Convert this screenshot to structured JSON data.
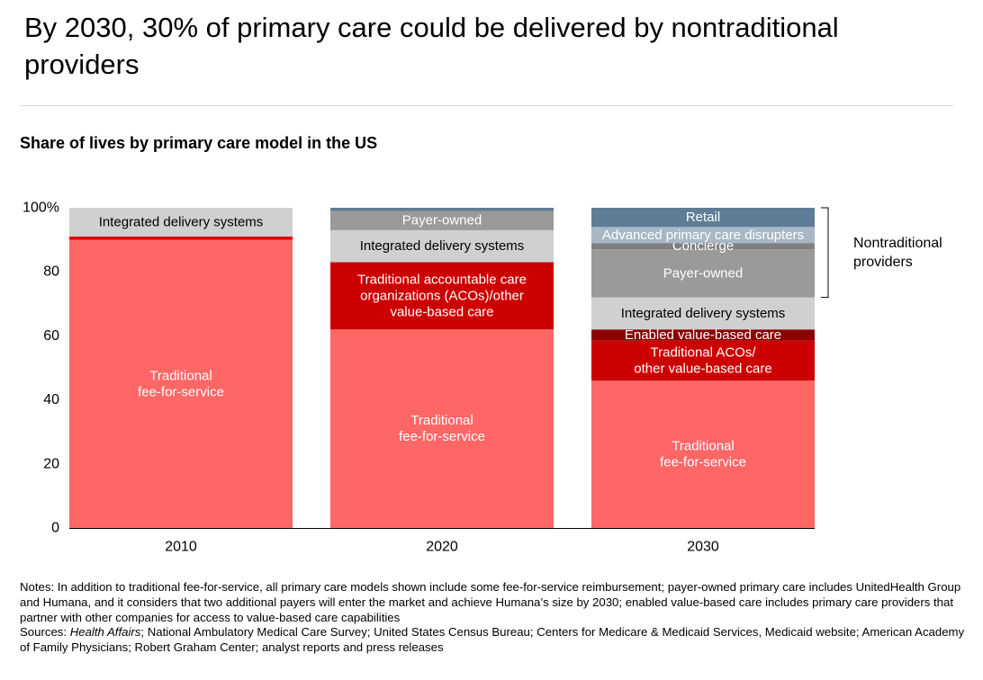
{
  "header": {
    "title": "By 2030, 30% of primary care could be delivered by nontraditional providers"
  },
  "chart_data": {
    "type": "bar",
    "stacked": true,
    "title": "Share of lives by primary care model in the US",
    "categories": [
      "2010",
      "2020",
      "2030"
    ],
    "ylim": [
      0,
      100
    ],
    "y_ticks": [
      "0",
      "20",
      "40",
      "60",
      "80",
      "100%"
    ],
    "grid": false,
    "bars": [
      {
        "category": "2010",
        "segments": [
          {
            "label": "Traditional\nfee-for-service",
            "value": 90,
            "color": "#ff6666"
          },
          {
            "label": "",
            "value": 1,
            "color": "#dd0000"
          },
          {
            "label": "Integrated delivery systems",
            "value": 9,
            "color": "#d0d0d0"
          }
        ]
      },
      {
        "category": "2020",
        "segments": [
          {
            "label": "Traditional\nfee-for-service",
            "value": 62,
            "color": "#ff6666"
          },
          {
            "label": "Traditional accountable care\norganizations (ACOs)/other\nvalue-based care",
            "value": 21,
            "color": "#cc0000"
          },
          {
            "label": "Integrated delivery systems",
            "value": 10,
            "color": "#d0d0d0"
          },
          {
            "label": "Payer-owned",
            "value": 6,
            "color": "#9a9a9a"
          },
          {
            "label": "",
            "value": 1,
            "color": "#5f7d96"
          }
        ]
      },
      {
        "category": "2030",
        "segments": [
          {
            "label": "Traditional\nfee-for-service",
            "value": 46,
            "color": "#ff6666"
          },
          {
            "label": "Traditional ACOs/\nother value-based care",
            "value": 12.5,
            "color": "#cc0000"
          },
          {
            "label": "Enabled value-based care",
            "value": 3.5,
            "color": "#8b0000"
          },
          {
            "label": "Integrated delivery systems",
            "value": 10,
            "color": "#d0d0d0"
          },
          {
            "label": "Payer-owned",
            "value": 15,
            "color": "#9a9a9a"
          },
          {
            "label": "Concierge",
            "value": 2,
            "color": "#7f7f7f"
          },
          {
            "label": "Advanced primary care disrupters",
            "value": 5,
            "color": "#a8b7c4"
          },
          {
            "label": "Retail",
            "value": 6,
            "color": "#5f7d96"
          }
        ]
      }
    ],
    "bracket": {
      "label": "Nontraditional\nproviders",
      "from": 72,
      "to": 100
    }
  },
  "notes": {
    "notes_text": "Notes: In addition to traditional fee-for-service, all primary care models shown include some fee-for-service reimbursement; payer-owned primary care includes UnitedHealth Group and Humana, and it considers that two additional payers will enter the market and achieve Humana’s size by 2030; enabled value-based care includes primary care providers that partner with other companies for access to value-based care capabilities",
    "sources_prefix": "Sources: ",
    "sources_italic": "Health Affairs",
    "sources_rest": "; National Ambulatory Medical Care Survey; United States Census Bureau; Centers for Medicare & Medicaid Services, Medicaid website; American Academy of Family Physicians; Robert Graham Center; analyst reports and press releases"
  }
}
